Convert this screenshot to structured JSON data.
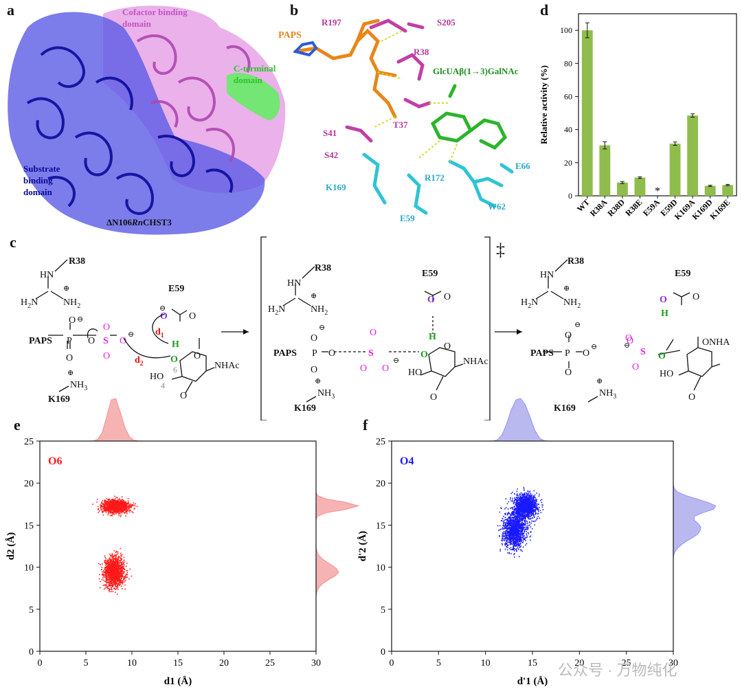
{
  "panels": {
    "a": {
      "letter": "a",
      "labels": {
        "cofactor": "Cofactor binding domain",
        "cterminal": "C-terminal domain",
        "substrate": "Substrate binding domain",
        "caption": "ΔN106RnCHST3"
      },
      "colors": {
        "substrate": "#1a1acc",
        "cofactor": "#d070d0",
        "cterminal": "#44e044"
      }
    },
    "b": {
      "letter": "b",
      "labels": {
        "paps": "PAPS",
        "ligand": "GlcUAβ(1→3)GalNAc",
        "residues_magenta": [
          "R197",
          "S205",
          "R38",
          "T37",
          "S41",
          "S42"
        ],
        "residues_cyan": [
          "E66",
          "K169",
          "R172",
          "E59",
          "W62"
        ]
      },
      "colors": {
        "paps": "#e8861a",
        "magenta": "#b8359b",
        "cyan": "#2aa7c9",
        "ligand": "#1e8f1e"
      }
    },
    "c": {
      "letter": "c",
      "ts_symbol": "‡",
      "labels": {
        "R38": "R38",
        "E59": "E59",
        "K169": "K169",
        "PAPS": "PAPS",
        "NHAc": "NHAc",
        "NHA": "NHA",
        "d1": "d",
        "d1_sub": "1",
        "d2": "d",
        "d2_sub": "2",
        "six": "6",
        "four": "4",
        "HO": "HO",
        "HN": "HN",
        "S": "S",
        "P": "P",
        "O": "O",
        "H": "H",
        "plus": "⊕",
        "minus": "⊖"
      }
    },
    "d": {
      "letter": "d"
    },
    "e": {
      "letter": "e",
      "tag": "O6"
    },
    "f": {
      "letter": "f",
      "tag": "O4"
    }
  },
  "chart_data": [
    {
      "type": "bar",
      "panel": "d",
      "categories": [
        "WT",
        "R38A",
        "R38D",
        "R38E",
        "E59A",
        "E59D",
        "K169A",
        "K169D",
        "K169E"
      ],
      "values": [
        100,
        30.5,
        8,
        11,
        0,
        31.5,
        48.5,
        6,
        6.5
      ],
      "errors": [
        4.5,
        2.2,
        0.6,
        0.5,
        0,
        1.0,
        1.0,
        0.4,
        0.4
      ],
      "annotations": [
        {
          "category": "E59A",
          "text": "*"
        }
      ],
      "ylabel": "Relative activity (%)",
      "ylim": [
        0,
        110
      ],
      "yticks": [
        0,
        20,
        40,
        60,
        80,
        100
      ],
      "color": "#8fbd4d"
    },
    {
      "type": "scatter",
      "panel": "e",
      "series": [
        {
          "name": "O6",
          "color": "#ff1a1a",
          "clusters": [
            {
              "x_center": 8.2,
              "y_center": 17.3,
              "x_spread": 1.2,
              "y_spread": 0.6
            },
            {
              "x_center": 8.0,
              "y_center": 9.5,
              "x_spread": 0.9,
              "y_spread": 1.4
            }
          ]
        }
      ],
      "xlabel": "d1 (Å)",
      "ylabel": "d2 (Å)",
      "xlim": [
        0,
        30
      ],
      "ylim": [
        0,
        25
      ],
      "xticks": [
        0,
        5,
        10,
        15,
        20,
        25,
        30
      ],
      "yticks": [
        0,
        5,
        10,
        15,
        20,
        25
      ],
      "marginal_color": "#f6b3b3"
    },
    {
      "type": "scatter",
      "panel": "f",
      "series": [
        {
          "name": "O4",
          "color": "#1a1aff",
          "clusters": [
            {
              "x_center": 14.2,
              "y_center": 17.3,
              "x_spread": 1.0,
              "y_spread": 1.2
            },
            {
              "x_center": 13.0,
              "y_center": 14.5,
              "x_spread": 1.0,
              "y_spread": 1.8
            }
          ]
        }
      ],
      "xlabel": "d'1 (Å)",
      "ylabel": "d'2 (Å)",
      "xlim": [
        0,
        30
      ],
      "ylim": [
        0,
        25
      ],
      "xticks": [
        0,
        5,
        10,
        15,
        20,
        25,
        30
      ],
      "yticks": [
        0,
        5,
        10,
        15,
        20,
        25
      ],
      "marginal_color": "#b9b9f0"
    }
  ],
  "watermark": {
    "text": "公众号 · 万物纯化"
  }
}
